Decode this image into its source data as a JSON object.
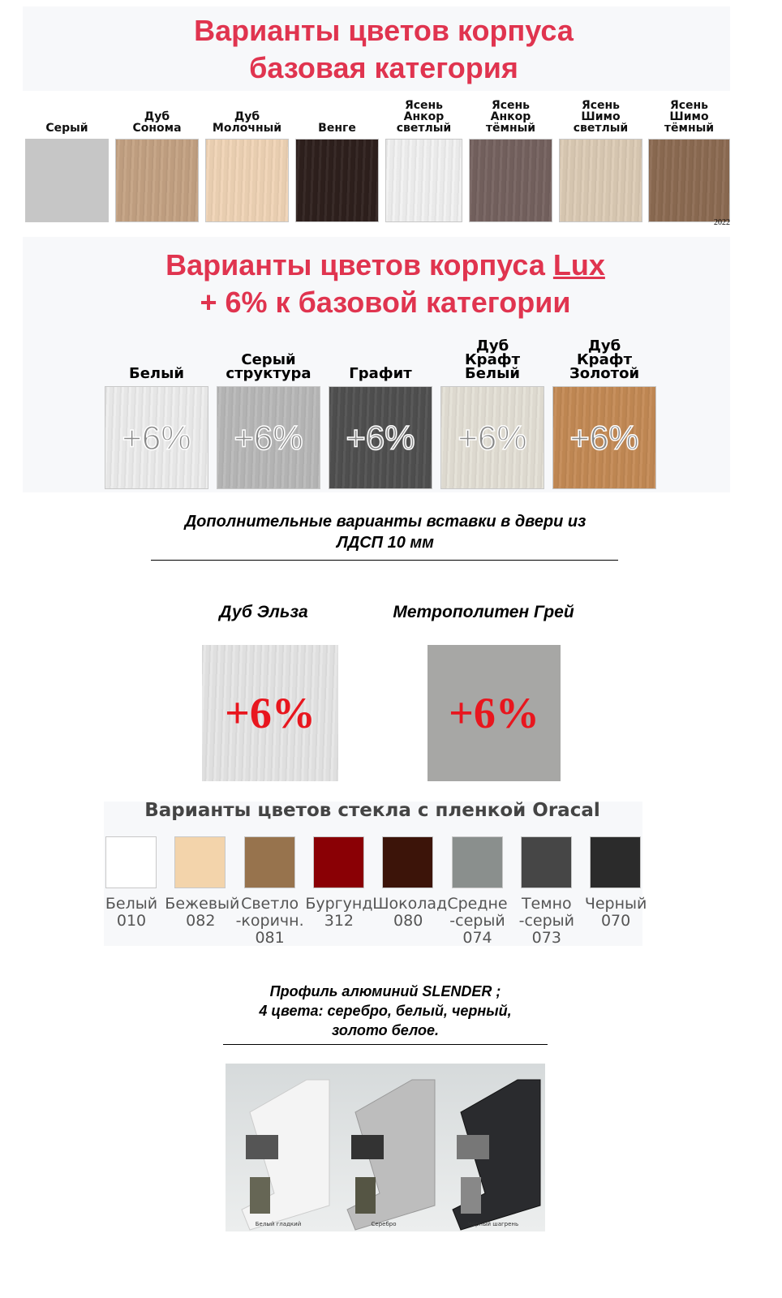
{
  "base": {
    "title_line1": "Варианты цветов корпуса",
    "title_line2": "базовая категория",
    "swatches": [
      {
        "label": "Серый",
        "color": "#c6c6c6"
      },
      {
        "label": "Дуб\nСонома",
        "color": "#c4a283"
      },
      {
        "label": "Дуб\nМолочный",
        "color": "#f0d4b6"
      },
      {
        "label": "Венге",
        "color": "#2e201d"
      },
      {
        "label": "Ясень\nАнкор\nсветлый",
        "color": "#f1f1f1"
      },
      {
        "label": "Ясень\nАнкор\nтёмный",
        "color": "#75625f"
      },
      {
        "label": "Ясень\nШимо\nсветлый",
        "color": "#dccbb5"
      },
      {
        "label": "Ясень\nШимо\nтёмный",
        "color": "#8c6b52"
      }
    ],
    "year": "2022"
  },
  "lux": {
    "title_prefix": "Варианты цветов корпуса ",
    "title_lux": "Lux",
    "title_line2": "+ 6% к базовой категории",
    "swatches": [
      {
        "label": "Белый",
        "color": "#ededed",
        "badge": "+6%"
      },
      {
        "label": "Серый\nструктура",
        "color": "#b9b9b9",
        "badge": "+6%"
      },
      {
        "label": "Графит",
        "color": "#505050",
        "badge": "+6%"
      },
      {
        "label": "Дуб\nКрафт\nБелый",
        "color": "#e4e0d6",
        "badge": "+6%"
      },
      {
        "label": "Дуб\nКрафт\nЗолотой",
        "color": "#c48a55",
        "badge": "+6%"
      }
    ]
  },
  "inserts": {
    "heading": "Дополнительные варианты вставки в двери из\nЛДСП 10 мм",
    "items": [
      {
        "label": "Дуб Эльза",
        "color": "#e6e6e6",
        "badge": "+6%"
      },
      {
        "label": "Метрополитен Грей",
        "color": "#a7a7a5",
        "badge": "+6%"
      }
    ]
  },
  "glass": {
    "title": "Варианты цветов стекла с пленкой Oracal",
    "swatches": [
      {
        "label": "Белый\n010",
        "color": "#ffffff"
      },
      {
        "label": "Бежевый\n082",
        "color": "#f3d4ab"
      },
      {
        "label": "Светло\n-коричн.\n081",
        "color": "#97734d"
      },
      {
        "label": "Бургунд\n312",
        "color": "#8a0005"
      },
      {
        "label": "Шоколад\n080",
        "color": "#3c1409"
      },
      {
        "label": "Средне\n-серый\n074",
        "color": "#8a8f8d"
      },
      {
        "label": "Темно\n-серый\n073",
        "color": "#464646"
      },
      {
        "label": "Черный\n070",
        "color": "#2b2b2b"
      }
    ]
  },
  "profile": {
    "text": "Профиль алюминий SLENDER ;\n4 цвета: серебро, белый, черный,\nзолото белое.",
    "captions": [
      "Белый гладкий",
      "Серебро",
      "Чёрный шагрень"
    ]
  }
}
